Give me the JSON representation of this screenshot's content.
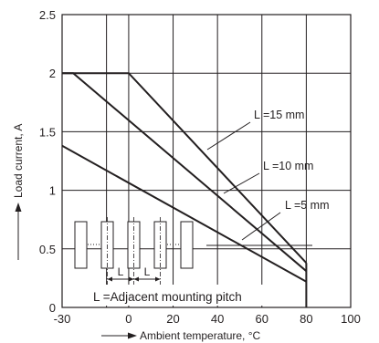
{
  "chart_data": {
    "type": "line",
    "xlabel": "Ambient temperature, °C",
    "ylabel": "Load current, A",
    "xlim": [
      -30,
      100
    ],
    "ylim": [
      0,
      2.5
    ],
    "x_ticks": [
      "-30",
      "0",
      "20",
      "40",
      "60",
      "80",
      "100"
    ],
    "y_ticks": [
      "0",
      "0.5",
      "1",
      "1.5",
      "2",
      "2.5"
    ],
    "grid": true,
    "series": [
      {
        "name": "L =15 mm",
        "x": [
          -30,
          0,
          80
        ],
        "y": [
          2.0,
          2.0,
          0.38
        ]
      },
      {
        "name": "L =10 mm",
        "x": [
          -30,
          -25,
          80
        ],
        "y": [
          2.0,
          2.0,
          0.31
        ]
      },
      {
        "name": "L =5 mm",
        "x": [
          -30,
          80
        ],
        "y": [
          1.38,
          0.22
        ]
      }
    ],
    "inset": {
      "pitch_label": "L",
      "caption": "L =Adjacent mounting pitch"
    }
  }
}
